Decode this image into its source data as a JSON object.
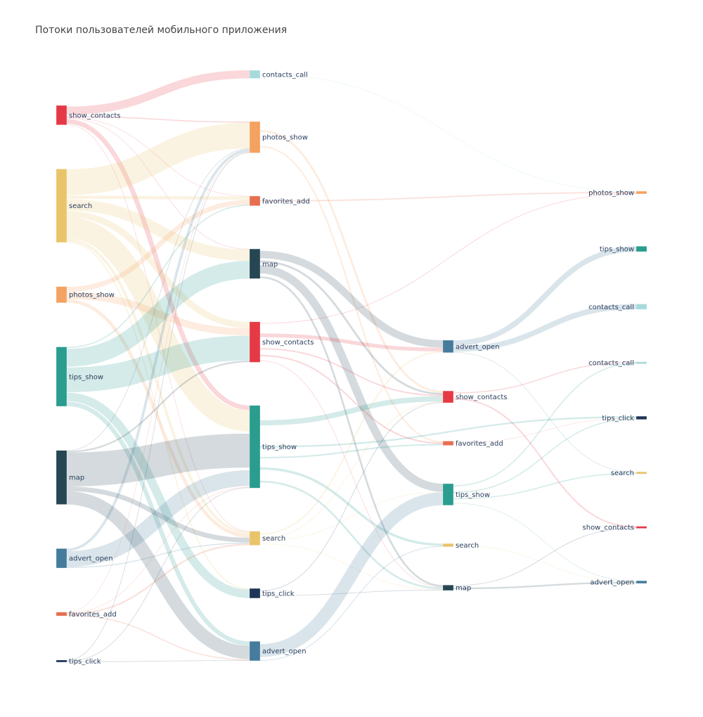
{
  "chart_data": {
    "type": "sankey",
    "title": "Потоки пользователей мобильного приложения",
    "steps": [
      {
        "nodes": [
          {
            "id": "a_show_contacts",
            "label": "show_contacts",
            "color": "#E63946",
            "value": 36
          },
          {
            "id": "a_search",
            "label": "search",
            "color": "#E9C46A",
            "value": 136
          },
          {
            "id": "a_photos_show",
            "label": "photos_show",
            "color": "#F4A261",
            "value": 30
          },
          {
            "id": "a_tips_show",
            "label": "tips_show",
            "color": "#2A9D8F",
            "value": 110
          },
          {
            "id": "a_map",
            "label": "map",
            "color": "#264653",
            "value": 100
          },
          {
            "id": "a_advert_open",
            "label": "advert_open",
            "color": "#457B9D",
            "value": 36
          },
          {
            "id": "a_favorites_add",
            "label": "favorites_add",
            "color": "#E76F51",
            "value": 7
          },
          {
            "id": "a_tips_click",
            "label": "tips_click",
            "color": "#1D3557",
            "value": 3
          }
        ]
      },
      {
        "nodes": [
          {
            "id": "b_contacts_call",
            "label": "contacts_call",
            "color": "#A8DADC",
            "value": 15
          },
          {
            "id": "b_photos_show",
            "label": "photos_show",
            "color": "#F4A261",
            "value": 58
          },
          {
            "id": "b_favorites_add",
            "label": "favorites_add",
            "color": "#E76F51",
            "value": 18
          },
          {
            "id": "b_map",
            "label": "map",
            "color": "#264653",
            "value": 55
          },
          {
            "id": "b_show_contacts",
            "label": "show_contacts",
            "color": "#E63946",
            "value": 75
          },
          {
            "id": "b_tips_show",
            "label": "tips_show",
            "color": "#2A9D8F",
            "value": 153
          },
          {
            "id": "b_search",
            "label": "search",
            "color": "#E9C46A",
            "value": 26
          },
          {
            "id": "b_tips_click",
            "label": "tips_click",
            "color": "#1D3557",
            "value": 18
          },
          {
            "id": "b_advert_open",
            "label": "advert_open",
            "color": "#457B9D",
            "value": 36
          }
        ]
      },
      {
        "nodes": [
          {
            "id": "c_advert_open",
            "label": "advert_open",
            "color": "#457B9D",
            "value": 23
          },
          {
            "id": "c_show_contacts",
            "label": "show_contacts",
            "color": "#E63946",
            "value": 22
          },
          {
            "id": "c_favorites_add",
            "label": "favorites_add",
            "color": "#E76F51",
            "value": 8
          },
          {
            "id": "c_tips_show",
            "label": "tips_show",
            "color": "#2A9D8F",
            "value": 40
          },
          {
            "id": "c_search",
            "label": "search",
            "color": "#E9C46A",
            "value": 6
          },
          {
            "id": "c_map",
            "label": "map",
            "color": "#264653",
            "value": 10
          }
        ]
      },
      {
        "nodes": [
          {
            "id": "d_photos_show",
            "label": "photos_show",
            "color": "#F4A261",
            "value": 5
          },
          {
            "id": "d_tips_show",
            "label": "tips_show",
            "color": "#2A9D8F",
            "value": 10
          },
          {
            "id": "d_contacts_call_1",
            "label": "contacts_call",
            "color": "#A8DADC",
            "value": 10
          },
          {
            "id": "d_contacts_call_2",
            "label": "contacts_call",
            "color": "#A8DADC",
            "value": 2
          },
          {
            "id": "d_tips_click",
            "label": "tips_click",
            "color": "#1D3557",
            "value": 6
          },
          {
            "id": "d_search",
            "label": "search",
            "color": "#E9C46A",
            "value": 3
          },
          {
            "id": "d_show_contacts",
            "label": "show_contacts",
            "color": "#E63946",
            "value": 3
          },
          {
            "id": "d_advert_open",
            "label": "advert_open",
            "color": "#457B9D",
            "value": 5
          }
        ]
      }
    ],
    "links": [
      {
        "source": "a_show_contacts",
        "target": "b_contacts_call",
        "value": 15
      },
      {
        "source": "a_show_contacts",
        "target": "b_photos_show",
        "value": 2
      },
      {
        "source": "a_show_contacts",
        "target": "b_favorites_add",
        "value": 1
      },
      {
        "source": "a_show_contacts",
        "target": "b_map",
        "value": 1
      },
      {
        "source": "a_show_contacts",
        "target": "b_tips_show",
        "value": 8
      },
      {
        "source": "a_show_contacts",
        "target": "b_search",
        "value": 1
      },
      {
        "source": "a_search",
        "target": "b_photos_show",
        "value": 46
      },
      {
        "source": "a_search",
        "target": "b_favorites_add",
        "value": 6
      },
      {
        "source": "a_search",
        "target": "b_map",
        "value": 21
      },
      {
        "source": "a_search",
        "target": "b_show_contacts",
        "value": 11
      },
      {
        "source": "a_search",
        "target": "b_tips_show",
        "value": 37
      },
      {
        "source": "a_search",
        "target": "b_search",
        "value": 5
      },
      {
        "source": "a_search",
        "target": "b_tips_click",
        "value": 2
      },
      {
        "source": "a_photos_show",
        "target": "b_favorites_add",
        "value": 9
      },
      {
        "source": "a_photos_show",
        "target": "b_show_contacts",
        "value": 12
      },
      {
        "source": "a_photos_show",
        "target": "b_search",
        "value": 6
      },
      {
        "source": "a_tips_show",
        "target": "b_favorites_add",
        "value": 2
      },
      {
        "source": "a_tips_show",
        "target": "b_map",
        "value": 33
      },
      {
        "source": "a_tips_show",
        "target": "b_show_contacts",
        "value": 42
      },
      {
        "source": "a_tips_show",
        "target": "b_tips_click",
        "value": 16
      },
      {
        "source": "a_tips_show",
        "target": "b_advert_open",
        "value": 8
      },
      {
        "source": "a_map",
        "target": "b_photos_show",
        "value": 1
      },
      {
        "source": "a_map",
        "target": "b_show_contacts",
        "value": 3
      },
      {
        "source": "a_map",
        "target": "b_tips_show",
        "value": 64
      },
      {
        "source": "a_map",
        "target": "b_search",
        "value": 9
      },
      {
        "source": "a_map",
        "target": "b_advert_open",
        "value": 25
      },
      {
        "source": "a_advert_open",
        "target": "b_photos_show",
        "value": 5
      },
      {
        "source": "a_advert_open",
        "target": "b_tips_show",
        "value": 30
      },
      {
        "source": "a_advert_open",
        "target": "b_search",
        "value": 2
      },
      {
        "source": "a_favorites_add",
        "target": "b_photos_show",
        "value": 1
      },
      {
        "source": "a_favorites_add",
        "target": "b_tips_show",
        "value": 1
      },
      {
        "source": "a_favorites_add",
        "target": "b_search",
        "value": 3
      },
      {
        "source": "a_favorites_add",
        "target": "b_advert_open",
        "value": 2
      },
      {
        "source": "a_tips_click",
        "target": "b_photos_show",
        "value": 1
      },
      {
        "source": "a_tips_click",
        "target": "b_tips_show",
        "value": 1
      },
      {
        "source": "a_tips_click",
        "target": "b_advert_open",
        "value": 1
      },
      {
        "source": "b_contacts_call",
        "target": "d_photos_show",
        "value": 1
      },
      {
        "source": "b_photos_show",
        "target": "c_show_contacts",
        "value": 3
      },
      {
        "source": "b_photos_show",
        "target": "c_favorites_add",
        "value": 2
      },
      {
        "source": "b_favorites_add",
        "target": "d_photos_show",
        "value": 2
      },
      {
        "source": "b_map",
        "target": "c_advert_open",
        "value": 12
      },
      {
        "source": "b_map",
        "target": "c_show_contacts",
        "value": 3
      },
      {
        "source": "b_map",
        "target": "c_tips_show",
        "value": 14
      },
      {
        "source": "b_map",
        "target": "c_map",
        "value": 3
      },
      {
        "source": "b_show_contacts",
        "target": "c_advert_open",
        "value": 6
      },
      {
        "source": "b_show_contacts",
        "target": "c_show_contacts",
        "value": 2
      },
      {
        "source": "b_show_contacts",
        "target": "c_favorites_add",
        "value": 2
      },
      {
        "source": "b_show_contacts",
        "target": "c_map",
        "value": 1
      },
      {
        "source": "b_show_contacts",
        "target": "d_photos_show",
        "value": 1
      },
      {
        "source": "b_tips_show",
        "target": "c_show_contacts",
        "value": 8
      },
      {
        "source": "b_tips_show",
        "target": "c_favorites_add",
        "value": 2
      },
      {
        "source": "b_tips_show",
        "target": "c_search",
        "value": 3
      },
      {
        "source": "b_tips_show",
        "target": "c_map",
        "value": 3
      },
      {
        "source": "b_tips_show",
        "target": "d_tips_click",
        "value": 3
      },
      {
        "source": "b_search",
        "target": "c_advert_open",
        "value": 2
      },
      {
        "source": "b_search",
        "target": "c_show_contacts",
        "value": 1
      },
      {
        "source": "b_search",
        "target": "c_tips_show",
        "value": 1
      },
      {
        "source": "b_search",
        "target": "c_map",
        "value": 1
      },
      {
        "source": "b_tips_click",
        "target": "c_map",
        "value": 1
      },
      {
        "source": "b_tips_click",
        "target": "c_show_contacts",
        "value": 1
      },
      {
        "source": "b_advert_open",
        "target": "c_tips_show",
        "value": 22
      },
      {
        "source": "b_advert_open",
        "target": "c_search",
        "value": 1
      },
      {
        "source": "c_advert_open",
        "target": "d_tips_show",
        "value": 10
      },
      {
        "source": "c_advert_open",
        "target": "d_contacts_call_1",
        "value": 10
      },
      {
        "source": "c_advert_open",
        "target": "d_search",
        "value": 1
      },
      {
        "source": "c_show_contacts",
        "target": "d_contacts_call_2",
        "value": 1
      },
      {
        "source": "c_show_contacts",
        "target": "d_show_contacts",
        "value": 2
      },
      {
        "source": "c_favorites_add",
        "target": "d_tips_click",
        "value": 1
      },
      {
        "source": "c_tips_show",
        "target": "d_search",
        "value": 1
      },
      {
        "source": "c_tips_show",
        "target": "d_contacts_call_2",
        "value": 1
      },
      {
        "source": "c_tips_show",
        "target": "d_tips_click",
        "value": 2
      },
      {
        "source": "c_tips_show",
        "target": "d_advert_open",
        "value": 1
      },
      {
        "source": "c_search",
        "target": "d_advert_open",
        "value": 1
      },
      {
        "source": "c_map",
        "target": "d_advert_open",
        "value": 3
      },
      {
        "source": "c_map",
        "target": "d_show_contacts",
        "value": 1
      }
    ]
  }
}
